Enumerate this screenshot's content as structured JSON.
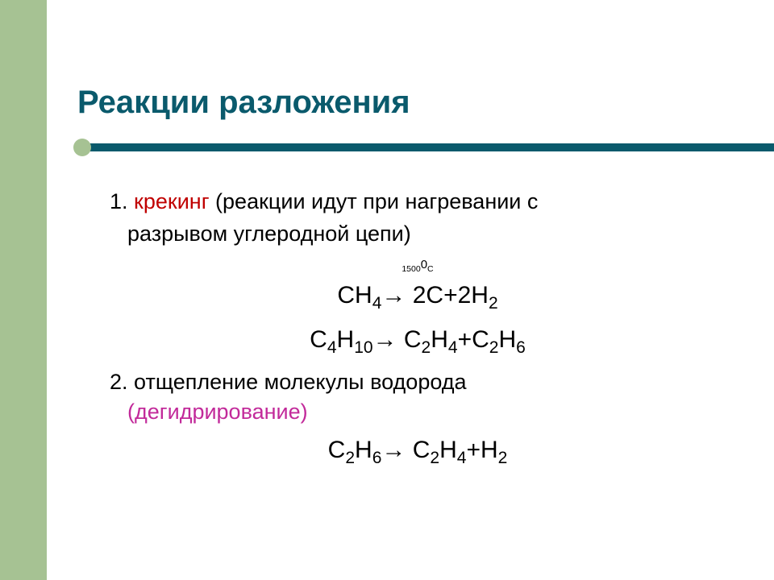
{
  "colors": {
    "sidebar": "#a6c293",
    "title": "#0a5a6c",
    "underline": "#0a5a6c",
    "dot": "#a6c293",
    "body_text": "#000000",
    "term1": "#c00000",
    "term2": "#c22a9a",
    "background": "#ffffff"
  },
  "typography": {
    "title_fontsize": 40,
    "body_fontsize": 27,
    "equation_fontsize": 30,
    "condition_fontsize": 15,
    "font_family": "Arial"
  },
  "title": "Реакции разложения",
  "items": {
    "item1": {
      "number": "1.",
      "term": "крекинг",
      "desc_line1": " (реакции идут при нагревании с",
      "desc_line2": "разрывом углеродной цепи)",
      "condition_value": "1500",
      "condition_super": "0",
      "condition_unit": "С",
      "eq1_left": "СН",
      "eq1_sub1": "4",
      "eq1_arrow": "→ 2С+2Н",
      "eq1_sub2": "2",
      "eq2_l1": "С",
      "eq2_s1": "4",
      "eq2_l2": "Н",
      "eq2_s2": "10",
      "eq2_arrow": "→ С",
      "eq2_s3": "2",
      "eq2_l3": "Н",
      "eq2_s4": "4",
      "eq2_plus": "+С",
      "eq2_s5": "2",
      "eq2_l4": "Н",
      "eq2_s6": "6"
    },
    "item2": {
      "number": "2. ",
      "desc": "отщепление молекулы водорода",
      "term": "(дегидрирование)",
      "eq_l1": "С",
      "eq_s1": "2",
      "eq_l2": "Н",
      "eq_s2": "6",
      "eq_arrow": "→ С",
      "eq_s3": "2",
      "eq_l3": "Н",
      "eq_s4": "4",
      "eq_plus": "+Н",
      "eq_s5": "2"
    }
  }
}
